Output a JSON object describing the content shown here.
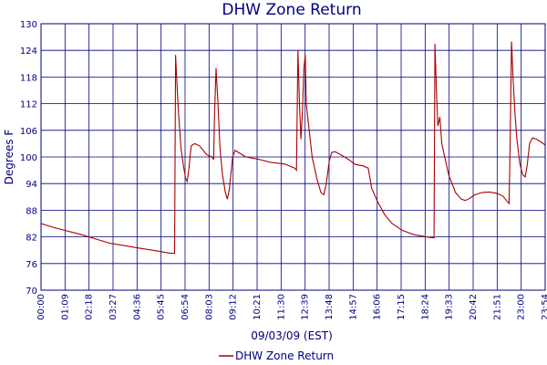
{
  "chart_data": {
    "type": "line",
    "title": "DHW Zone Return",
    "xlabel": "09/03/09 (EST)",
    "ylabel": "Degrees F",
    "ylim": [
      70,
      130
    ],
    "yticks": [
      "130",
      "124",
      "118",
      "112",
      "106",
      "100",
      "94",
      "88",
      "82",
      "76",
      "70"
    ],
    "xticks": [
      "00:00",
      "01:09",
      "02:18",
      "03:27",
      "04:36",
      "05:45",
      "06:54",
      "08:03",
      "09:12",
      "10:21",
      "11:30",
      "12:39",
      "13:48",
      "14:57",
      "16:06",
      "17:15",
      "18:24",
      "19:33",
      "20:42",
      "21:51",
      "23:00",
      "23:54"
    ],
    "grid": true,
    "legend": {
      "position": "bottom-center",
      "entries": [
        "DHW Zone Return"
      ]
    },
    "colors": {
      "series": "#aa0000",
      "grid": "#000080",
      "text": "#000080"
    },
    "series": [
      {
        "name": "DHW Zone Return",
        "points": [
          [
            0,
            85
          ],
          [
            30,
            84
          ],
          [
            80,
            82.6
          ],
          [
            140,
            80.6
          ],
          [
            200,
            79.5
          ],
          [
            240,
            78.8
          ],
          [
            265,
            78.3
          ],
          [
            274,
            78.3
          ],
          [
            276,
            123
          ],
          [
            278,
            118
          ],
          [
            282,
            110
          ],
          [
            287,
            102
          ],
          [
            292,
            98
          ],
          [
            297,
            95
          ],
          [
            300,
            94.5
          ],
          [
            303,
            97
          ],
          [
            308,
            102.5
          ],
          [
            315,
            103
          ],
          [
            325,
            102.5
          ],
          [
            340,
            100.5
          ],
          [
            350,
            100
          ],
          [
            354,
            99.5
          ],
          [
            356,
            110
          ],
          [
            359,
            120
          ],
          [
            363,
            112
          ],
          [
            367,
            102
          ],
          [
            372,
            96
          ],
          [
            378,
            92
          ],
          [
            382,
            90.5
          ],
          [
            386,
            92.5
          ],
          [
            393,
            100
          ],
          [
            398,
            101.5
          ],
          [
            405,
            101
          ],
          [
            420,
            100
          ],
          [
            445,
            99.5
          ],
          [
            470,
            98.8
          ],
          [
            500,
            98.4
          ],
          [
            520,
            97.5
          ],
          [
            524,
            97
          ],
          [
            527,
            124
          ],
          [
            530,
            112
          ],
          [
            533,
            104
          ],
          [
            536,
            110
          ],
          [
            539,
            120
          ],
          [
            542,
            123
          ],
          [
            544,
            112
          ],
          [
            549,
            107
          ],
          [
            556,
            100
          ],
          [
            566,
            95
          ],
          [
            574,
            92
          ],
          [
            580,
            91.5
          ],
          [
            585,
            94
          ],
          [
            591,
            99
          ],
          [
            596,
            101
          ],
          [
            603,
            101.2
          ],
          [
            615,
            100.5
          ],
          [
            630,
            99.5
          ],
          [
            645,
            98.3
          ],
          [
            660,
            98
          ],
          [
            671,
            97.5
          ],
          [
            678,
            93
          ],
          [
            690,
            90
          ],
          [
            705,
            87
          ],
          [
            720,
            85
          ],
          [
            740,
            83.5
          ],
          [
            765,
            82.5
          ],
          [
            790,
            82
          ],
          [
            802,
            81.8
          ],
          [
            806,
            81.8
          ],
          [
            808,
            125.5
          ],
          [
            811,
            115
          ],
          [
            814,
            107
          ],
          [
            818,
            109
          ],
          [
            822,
            103
          ],
          [
            828,
            100
          ],
          [
            836,
            96
          ],
          [
            850,
            92
          ],
          [
            862,
            90.5
          ],
          [
            870,
            90.2
          ],
          [
            878,
            90.6
          ],
          [
            890,
            91.5
          ],
          [
            905,
            92
          ],
          [
            920,
            92.1
          ],
          [
            935,
            91.8
          ],
          [
            947,
            91.2
          ],
          [
            956,
            90
          ],
          [
            960,
            89.5
          ],
          [
            962,
            102
          ],
          [
            965,
            126
          ],
          [
            968,
            118
          ],
          [
            972,
            110
          ],
          [
            976,
            104
          ],
          [
            982,
            98.5
          ],
          [
            988,
            96
          ],
          [
            993,
            95.5
          ],
          [
            997,
            98
          ],
          [
            1002,
            103
          ],
          [
            1008,
            104.3
          ],
          [
            1016,
            104
          ],
          [
            1025,
            103.4
          ],
          [
            1034,
            102.7
          ]
        ]
      }
    ]
  }
}
